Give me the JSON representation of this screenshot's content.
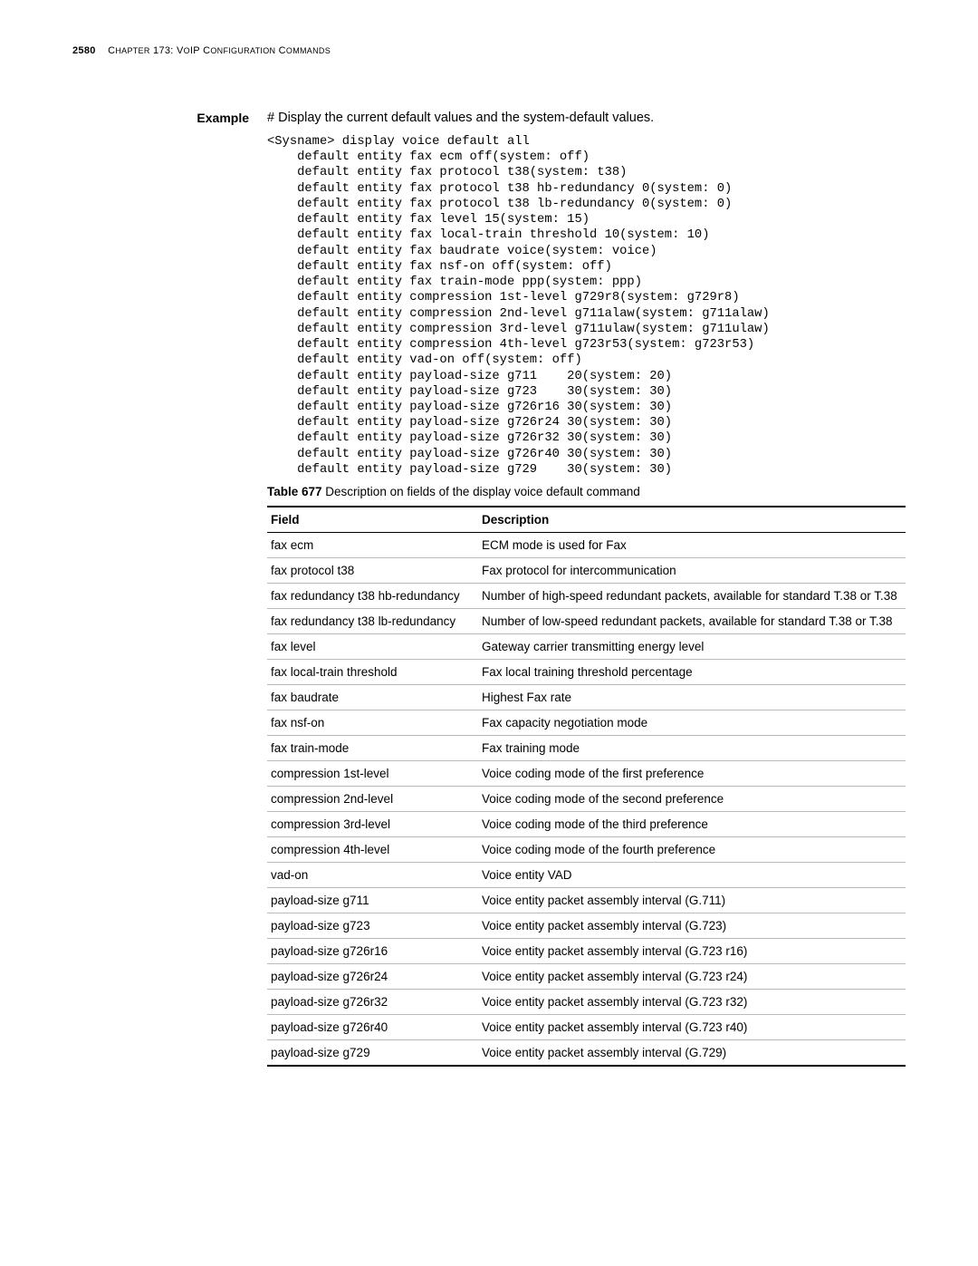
{
  "header": {
    "page_number": "2580",
    "chapter_label_prefix": "C",
    "chapter_label_rest": "HAPTER",
    "chapter_num": "173: V",
    "chapter_small1": "O",
    "chapter_mid": "IP C",
    "chapter_small2": "ONFIGURATION",
    "chapter_end": " C",
    "chapter_small3": "OMMANDS"
  },
  "example": {
    "label": "Example",
    "text": "# Display the current default values and the system-default values."
  },
  "terminal": "<Sysname> display voice default all\n    default entity fax ecm off(system: off)\n    default entity fax protocol t38(system: t38)\n    default entity fax protocol t38 hb-redundancy 0(system: 0)\n    default entity fax protocol t38 lb-redundancy 0(system: 0)\n    default entity fax level 15(system: 15)\n    default entity fax local-train threshold 10(system: 10)\n    default entity fax baudrate voice(system: voice)\n    default entity fax nsf-on off(system: off)\n    default entity fax train-mode ppp(system: ppp)\n    default entity compression 1st-level g729r8(system: g729r8)\n    default entity compression 2nd-level g711alaw(system: g711alaw)\n    default entity compression 3rd-level g711ulaw(system: g711ulaw)\n    default entity compression 4th-level g723r53(system: g723r53)\n    default entity vad-on off(system: off)\n    default entity payload-size g711    20(system: 20)\n    default entity payload-size g723    30(system: 30)\n    default entity payload-size g726r16 30(system: 30)\n    default entity payload-size g726r24 30(system: 30)\n    default entity payload-size g726r32 30(system: 30)\n    default entity payload-size g726r40 30(system: 30)\n    default entity payload-size g729    30(system: 30)",
  "table": {
    "caption_bold": "Table 677",
    "caption_rest": "   Description on fields of the display voice default command",
    "columns": [
      "Field",
      "Description"
    ],
    "rows": [
      [
        "fax ecm",
        "ECM mode is used for Fax"
      ],
      [
        "fax protocol t38",
        "Fax protocol for intercommunication"
      ],
      [
        "fax redundancy t38 hb-redundancy",
        "Number of high-speed redundant packets, available for standard T.38 or T.38"
      ],
      [
        "fax redundancy t38 lb-redundancy",
        "Number of low-speed redundant packets, available for standard T.38 or T.38"
      ],
      [
        "fax level",
        "Gateway carrier transmitting energy level"
      ],
      [
        "fax local-train threshold",
        "Fax local training threshold percentage"
      ],
      [
        "fax baudrate",
        "Highest Fax rate"
      ],
      [
        "fax nsf-on",
        "Fax capacity negotiation mode"
      ],
      [
        "fax train-mode",
        "Fax training mode"
      ],
      [
        "compression 1st-level",
        "Voice coding mode of the first preference"
      ],
      [
        "compression 2nd-level",
        "Voice coding mode of the second preference"
      ],
      [
        "compression 3rd-level",
        "Voice coding mode of the third preference"
      ],
      [
        "compression 4th-level",
        "Voice coding mode of the fourth preference"
      ],
      [
        "vad-on",
        "Voice entity VAD"
      ],
      [
        "payload-size g711",
        "Voice entity packet assembly interval (G.711)"
      ],
      [
        "payload-size g723",
        "Voice entity packet assembly interval (G.723)"
      ],
      [
        "payload-size g726r16",
        "Voice entity packet assembly interval (G.723 r16)"
      ],
      [
        "payload-size g726r24",
        "Voice entity packet assembly interval (G.723 r24)"
      ],
      [
        "payload-size g726r32",
        "Voice entity packet assembly interval (G.723 r32)"
      ],
      [
        "payload-size g726r40",
        "Voice entity packet assembly interval (G.723 r40)"
      ],
      [
        "payload-size g729",
        "Voice entity packet assembly interval (G.729)"
      ]
    ]
  }
}
